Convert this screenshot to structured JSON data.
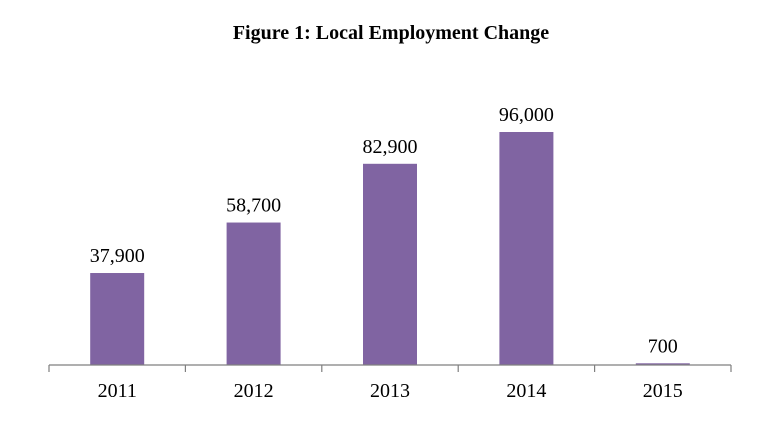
{
  "chart_data": {
    "type": "bar",
    "title": "Figure 1: Local Employment Change",
    "categories": [
      "2011",
      "2012",
      "2013",
      "2014",
      "2015"
    ],
    "values": [
      37900,
      58700,
      82900,
      96000,
      700
    ],
    "data_labels": [
      "37,900",
      "58,700",
      "82,900",
      "96,000",
      "700"
    ],
    "xlabel": "",
    "ylabel": "",
    "ylim": [
      0,
      96000
    ],
    "bar_color": "#8064a2",
    "grid": false,
    "legend": "none"
  }
}
